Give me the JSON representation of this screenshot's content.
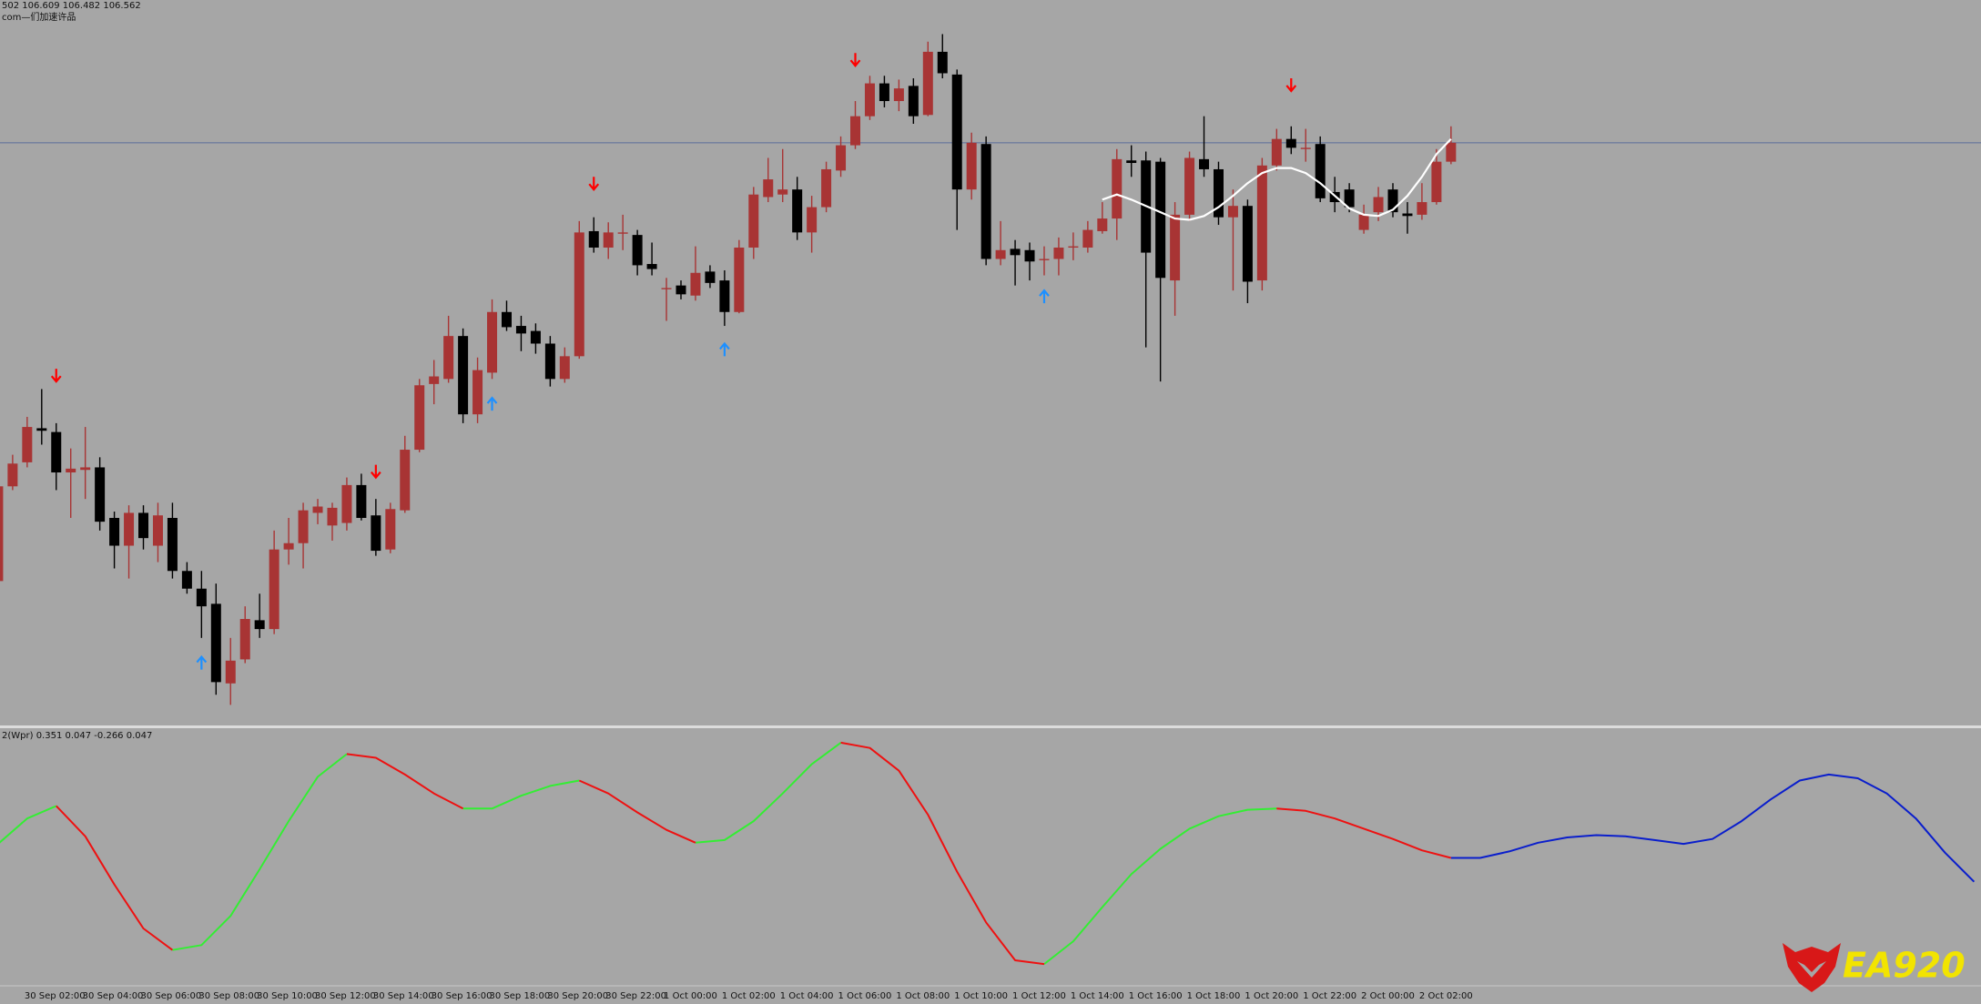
{
  "chart_data": [
    {
      "type": "candlestick",
      "title": "502 106.609 106.482 106.562",
      "subtitle": "com—们加速许品",
      "up_color": "#a83434",
      "down_color": "#000000",
      "price_line_color": "#5a6e9a",
      "ylim": [
        106.1,
        106.675
      ],
      "categories": [
        null,
        null,
        "30 Sep 02:00",
        null,
        null,
        null,
        "30 Sep 04:00",
        null,
        null,
        null,
        "30 Sep 06:00",
        null,
        null,
        null,
        "30 Sep 08:00",
        null,
        null,
        null,
        "30 Sep 10:00",
        null,
        null,
        null,
        "30 Sep 12:00",
        null,
        null,
        null,
        "30 Sep 14:00",
        null,
        null,
        null,
        "30 Sep 16:00",
        null,
        null,
        null,
        "30 Sep 18:00",
        null,
        null,
        null,
        "30 Sep 20:00",
        null,
        null,
        null,
        "30 Sep 22:00",
        null,
        null,
        null,
        "1 Oct 00:00",
        null,
        null,
        null,
        "1 Oct 02:00",
        null,
        null,
        null,
        "1 Oct 04:00",
        null,
        null,
        null,
        "1 Oct 06:00",
        null,
        null,
        null,
        "1 Oct 08:00",
        null,
        null,
        null,
        "1 Oct 10:00",
        null,
        null,
        null,
        "1 Oct 12:00",
        null,
        null,
        null,
        "1 Oct 14:00",
        null,
        null,
        null,
        "1 Oct 16:00",
        null,
        null,
        null,
        "1 Oct 18:00",
        null,
        null,
        null,
        "1 Oct 20:00",
        null,
        null,
        null,
        "1 Oct 22:00",
        null,
        null,
        null,
        "2 Oct 00:00",
        null,
        null,
        null,
        "2 Oct 02:00",
        null,
        null
      ],
      "open": [
        106.215,
        106.29,
        106.309,
        106.336,
        106.333,
        106.301,
        106.303,
        106.305,
        106.265,
        106.243,
        106.269,
        106.243,
        106.265,
        106.223,
        106.209,
        106.197,
        106.134,
        106.153,
        106.184,
        106.177,
        106.24,
        106.245,
        106.269,
        106.259,
        106.261,
        106.291,
        106.267,
        106.24,
        106.271,
        106.319,
        106.371,
        106.375,
        106.409,
        106.347,
        106.38,
        106.428,
        106.417,
        106.413,
        106.403,
        106.375,
        106.393,
        106.492,
        106.479,
        106.49,
        106.489,
        106.466,
        106.446,
        106.449,
        106.441,
        106.46,
        106.453,
        106.428,
        106.479,
        106.519,
        106.521,
        106.525,
        106.491,
        106.511,
        106.54,
        106.56,
        106.583,
        106.609,
        106.595,
        106.607,
        106.584,
        106.634,
        106.616,
        106.525,
        106.561,
        106.47,
        106.478,
        106.477,
        106.469,
        106.47,
        106.479,
        106.479,
        106.492,
        106.502,
        106.548,
        106.548,
        106.547,
        106.453,
        106.505,
        106.549,
        106.541,
        106.503,
        106.512,
        106.453,
        106.544,
        106.565,
        106.557,
        106.561,
        106.523,
        106.525,
        106.493,
        106.507,
        106.525,
        106.506,
        106.505,
        106.515,
        106.547
      ],
      "high": [
        106.29,
        106.315,
        106.345,
        106.367,
        106.34,
        106.32,
        106.337,
        106.313,
        106.27,
        106.275,
        106.275,
        106.277,
        106.277,
        106.23,
        106.223,
        106.213,
        106.17,
        106.195,
        106.205,
        106.255,
        106.265,
        106.277,
        106.28,
        106.277,
        106.297,
        106.3,
        106.28,
        106.277,
        106.33,
        106.375,
        106.39,
        106.425,
        106.415,
        106.392,
        106.438,
        106.437,
        106.425,
        106.419,
        106.409,
        106.4,
        106.5,
        106.503,
        106.499,
        106.505,
        106.493,
        106.483,
        106.455,
        106.453,
        106.48,
        106.465,
        106.461,
        106.485,
        106.527,
        106.55,
        106.557,
        106.535,
        106.52,
        106.547,
        106.567,
        106.595,
        106.615,
        106.615,
        106.612,
        106.613,
        106.642,
        106.648,
        106.62,
        106.57,
        106.567,
        106.5,
        106.485,
        106.483,
        106.48,
        106.487,
        106.491,
        106.5,
        106.515,
        106.557,
        106.56,
        106.555,
        106.55,
        106.515,
        106.555,
        106.583,
        106.547,
        106.525,
        106.517,
        106.55,
        106.573,
        106.575,
        106.573,
        106.567,
        106.535,
        106.53,
        106.513,
        106.527,
        106.53,
        106.515,
        106.53,
        106.557,
        106.575
      ],
      "low": [
        106.213,
        106.287,
        106.305,
        106.323,
        106.287,
        106.265,
        106.28,
        106.255,
        106.225,
        106.217,
        106.24,
        106.23,
        106.217,
        106.205,
        106.17,
        106.125,
        106.117,
        106.15,
        106.17,
        106.173,
        106.228,
        106.225,
        106.26,
        106.247,
        106.255,
        106.263,
        106.235,
        106.237,
        106.269,
        106.317,
        106.355,
        106.372,
        106.34,
        106.34,
        106.375,
        106.413,
        106.397,
        106.395,
        106.369,
        106.372,
        106.391,
        106.475,
        106.47,
        106.477,
        106.457,
        106.457,
        106.421,
        106.438,
        106.437,
        106.447,
        106.417,
        106.427,
        106.47,
        106.515,
        106.515,
        106.485,
        106.475,
        106.507,
        106.535,
        106.557,
        106.58,
        106.59,
        106.587,
        106.577,
        106.583,
        106.613,
        106.493,
        106.517,
        106.465,
        106.465,
        106.449,
        106.453,
        106.457,
        106.457,
        106.469,
        106.475,
        106.49,
        106.485,
        106.535,
        106.4,
        106.373,
        106.425,
        106.5,
        106.535,
        106.497,
        106.445,
        106.435,
        106.445,
        106.54,
        106.553,
        106.547,
        106.515,
        106.507,
        106.507,
        106.49,
        106.5,
        106.503,
        106.49,
        106.501,
        106.513,
        106.545
      ],
      "close": [
        106.29,
        106.308,
        106.337,
        106.334,
        106.301,
        106.304,
        106.305,
        106.262,
        106.243,
        106.269,
        106.249,
        106.267,
        106.223,
        106.209,
        106.195,
        106.135,
        106.152,
        106.185,
        106.177,
        106.24,
        106.245,
        106.271,
        106.274,
        106.273,
        106.291,
        106.265,
        106.239,
        106.272,
        106.319,
        106.37,
        106.377,
        106.409,
        106.347,
        106.382,
        106.428,
        106.416,
        106.411,
        106.403,
        106.375,
        106.393,
        106.491,
        106.479,
        106.491,
        106.491,
        106.465,
        106.462,
        106.447,
        106.442,
        106.459,
        106.451,
        106.428,
        106.479,
        106.521,
        106.533,
        106.525,
        106.491,
        106.511,
        106.541,
        106.56,
        106.583,
        106.609,
        106.595,
        106.605,
        106.583,
        106.634,
        106.617,
        106.525,
        106.562,
        106.47,
        106.477,
        106.473,
        106.468,
        106.47,
        106.479,
        106.48,
        106.493,
        106.502,
        106.549,
        106.546,
        106.475,
        106.455,
        106.505,
        106.55,
        106.541,
        106.503,
        106.512,
        106.452,
        106.544,
        106.565,
        106.558,
        106.558,
        106.518,
        106.515,
        106.511,
        106.505,
        106.519,
        106.507,
        106.504,
        106.515,
        106.547,
        106.562
      ],
      "ma": {
        "color": "#ffffff",
        "values": [
          null,
          null,
          null,
          null,
          null,
          null,
          null,
          null,
          null,
          null,
          null,
          null,
          null,
          null,
          null,
          null,
          null,
          null,
          null,
          null,
          null,
          null,
          null,
          null,
          null,
          null,
          null,
          null,
          null,
          null,
          null,
          null,
          null,
          null,
          null,
          null,
          null,
          null,
          null,
          null,
          null,
          null,
          null,
          null,
          null,
          null,
          null,
          null,
          null,
          null,
          null,
          null,
          null,
          null,
          null,
          null,
          null,
          null,
          null,
          null,
          null,
          null,
          null,
          null,
          null,
          null,
          null,
          null,
          null,
          null,
          null,
          null,
          null,
          null,
          null,
          null,
          106.517,
          106.521,
          106.517,
          106.512,
          106.507,
          106.502,
          106.501,
          106.504,
          106.511,
          106.52,
          106.53,
          106.538,
          106.542,
          106.542,
          106.538,
          106.53,
          106.52,
          106.51,
          106.505,
          106.504,
          106.509,
          106.52,
          106.535,
          106.553,
          106.565
        ]
      },
      "sell_arrows": {
        "color": "#ff0000",
        "values": [
          null,
          null,
          null,
          null,
          106.378,
          null,
          null,
          null,
          null,
          null,
          null,
          null,
          null,
          null,
          null,
          null,
          null,
          null,
          null,
          null,
          null,
          null,
          null,
          null,
          null,
          null,
          106.302,
          null,
          null,
          null,
          null,
          null,
          null,
          null,
          null,
          null,
          null,
          null,
          null,
          null,
          null,
          106.53,
          null,
          null,
          null,
          null,
          null,
          null,
          null,
          null,
          null,
          null,
          null,
          null,
          null,
          null,
          null,
          null,
          null,
          106.628,
          null,
          null,
          null,
          null,
          null,
          null,
          null,
          null,
          null,
          null,
          null,
          null,
          null,
          null,
          null,
          null,
          null,
          null,
          null,
          null,
          null,
          null,
          null,
          null,
          null,
          null,
          null,
          null,
          null,
          106.608,
          null,
          null,
          null,
          null,
          null,
          null,
          null,
          null,
          null,
          null,
          null
        ]
      },
      "buy_arrows": {
        "color": "#1e90ff",
        "values": [
          null,
          null,
          null,
          null,
          null,
          null,
          null,
          null,
          null,
          null,
          null,
          null,
          null,
          null,
          106.15,
          null,
          null,
          null,
          null,
          null,
          null,
          null,
          null,
          null,
          null,
          null,
          null,
          null,
          null,
          null,
          null,
          null,
          null,
          null,
          106.355,
          null,
          null,
          null,
          null,
          null,
          null,
          null,
          null,
          null,
          null,
          null,
          null,
          null,
          null,
          null,
          106.398,
          null,
          null,
          null,
          null,
          null,
          null,
          null,
          null,
          null,
          null,
          null,
          null,
          null,
          null,
          null,
          null,
          null,
          null,
          null,
          null,
          null,
          106.44,
          null,
          null,
          null,
          null,
          null,
          null,
          null,
          null,
          null,
          null,
          null,
          null,
          null,
          null,
          null,
          null,
          null,
          null,
          null,
          null,
          null,
          null,
          null,
          null,
          null,
          null,
          null,
          null
        ]
      }
    },
    {
      "type": "line",
      "title": "2(Wpr) 0.351 0.047 -0.266 0.047",
      "ylim": [
        -0.333,
        0.34
      ],
      "series": [
        {
          "color": "#33ee33",
          "values": [
            0.04,
            0.107,
            0.14,
            null,
            null,
            null,
            -0.24,
            -0.227,
            -0.15,
            -0.027,
            0.1,
            0.217,
            0.277,
            null,
            null,
            null,
            0.133,
            0.133,
            0.167,
            0.193,
            0.207,
            null,
            null,
            null,
            0.043,
            0.05,
            0.1,
            0.173,
            0.25,
            0.307,
            null,
            null,
            null,
            null,
            null,
            null,
            -0.277,
            -0.217,
            -0.127,
            -0.04,
            0.027,
            0.08,
            0.113,
            0.13,
            0.133,
            null,
            null,
            null,
            null,
            null,
            null,
            null,
            null,
            null,
            null,
            null,
            null,
            null,
            null,
            null,
            null,
            null,
            null,
            null,
            null,
            null,
            null,
            null,
            null
          ]
        },
        {
          "color": "#ee1111",
          "values": [
            null,
            null,
            0.14,
            0.06,
            -0.067,
            -0.183,
            -0.24,
            null,
            null,
            null,
            null,
            null,
            0.277,
            0.267,
            0.223,
            0.173,
            0.133,
            null,
            null,
            null,
            0.207,
            0.173,
            0.123,
            0.077,
            0.043,
            null,
            null,
            null,
            null,
            0.307,
            0.293,
            0.233,
            0.117,
            -0.033,
            -0.167,
            -0.267,
            -0.277,
            null,
            null,
            null,
            null,
            null,
            null,
            null,
            0.133,
            0.127,
            0.107,
            0.08,
            0.053,
            0.023,
            0.003,
            null,
            null,
            null,
            null,
            null,
            null,
            null,
            null,
            null,
            null,
            null,
            null,
            null,
            null,
            null,
            null,
            null,
            null
          ]
        },
        {
          "color": "#0a1ecc",
          "values": [
            null,
            null,
            null,
            null,
            null,
            null,
            null,
            null,
            null,
            null,
            null,
            null,
            null,
            null,
            null,
            null,
            null,
            null,
            null,
            null,
            null,
            null,
            null,
            null,
            null,
            null,
            null,
            null,
            null,
            null,
            null,
            null,
            null,
            null,
            null,
            null,
            null,
            null,
            null,
            null,
            null,
            null,
            null,
            null,
            null,
            null,
            null,
            null,
            null,
            null,
            0.003,
            0.003,
            0.02,
            0.043,
            0.057,
            0.063,
            0.06,
            0.05,
            0.04,
            0.053,
            0.1,
            0.157,
            0.207,
            0.223,
            0.213,
            0.173,
            0.107,
            0.017,
            -0.06
          ]
        }
      ]
    }
  ],
  "logo": "EA920"
}
